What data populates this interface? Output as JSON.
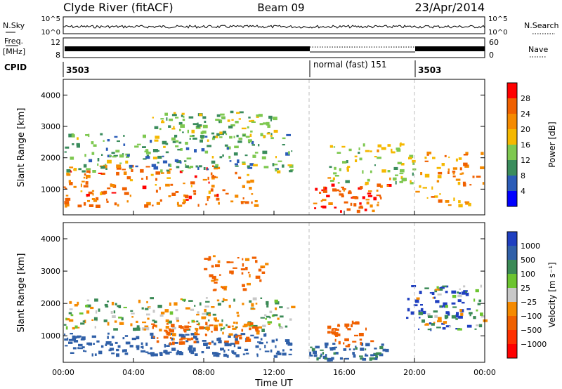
{
  "header": {
    "station": "Clyde River (fitACF)",
    "beam": "Beam 09",
    "date": "23/Apr/2014"
  },
  "status": {
    "nsky_label": "N.Sky",
    "nsky_ticks": [
      "10^5",
      "10^0"
    ],
    "nsearch_label": "N.Search",
    "freq_label_1": "Freq.",
    "freq_label_2": "[MHz]",
    "freq_ticks": [
      "12",
      "8"
    ],
    "nave_label": "Nave",
    "nave_ticks": [
      "60",
      "0"
    ],
    "cpid_label": "CPID",
    "cpid_segments": [
      "3503",
      "normal (fast) 151",
      "3503"
    ]
  },
  "colors": {
    "power_scale": [
      "#0000ff",
      "#2b5cb8",
      "#3a8c5c",
      "#7ec850",
      "#f5b800",
      "#f58a00",
      "#f06000",
      "#ff0000"
    ],
    "velocity_scale": [
      "#1f3fc0",
      "#3060a8",
      "#3b8a56",
      "#6cc430",
      "#c8c8c8",
      "#f58a00",
      "#f06000",
      "#ff3000",
      "#ff0000"
    ],
    "ground_scatter": "#b8b8b8"
  },
  "chart_data": [
    {
      "type": "heatmap",
      "title": "",
      "xlabel": "",
      "ylabel": "Slant Range [km]",
      "xlim": [
        0,
        24
      ],
      "ylim": [
        180,
        4500
      ],
      "x_ticks": [],
      "y_ticks": [
        "1000",
        "2000",
        "3000",
        "4000"
      ],
      "colorbar_label": "Power [dB]",
      "colorbar_ticks": [
        "4",
        "8",
        "12",
        "16",
        "20",
        "24",
        "28"
      ],
      "colorbar_range": [
        0,
        32
      ],
      "mode_change_times": [
        14,
        20
      ],
      "bands": [
        {
          "start": 0.0,
          "end": 11.0,
          "range_low": 500,
          "range_high": 1800,
          "power": 24
        },
        {
          "start": 0.0,
          "end": 13.0,
          "range_low": 1600,
          "range_high": 2800,
          "power": 12
        },
        {
          "start": 5.0,
          "end": 12.0,
          "range_low": 2600,
          "range_high": 3500,
          "power": 14
        },
        {
          "start": 14.0,
          "end": 18.5,
          "range_low": 300,
          "range_high": 1200,
          "power": 26
        },
        {
          "start": 15.0,
          "end": 20.0,
          "range_low": 1200,
          "range_high": 2500,
          "power": 16
        },
        {
          "start": 20.0,
          "end": 24.0,
          "range_low": 500,
          "range_high": 2200,
          "power": 22
        }
      ]
    },
    {
      "type": "heatmap",
      "title": "",
      "xlabel": "Time UT",
      "ylabel": "Slant Range [km]",
      "xlim": [
        0,
        24
      ],
      "ylim": [
        180,
        4500
      ],
      "x_ticks": [
        "00:00",
        "04:00",
        "08:00",
        "12:00",
        "16:00",
        "20:00",
        "00:00"
      ],
      "y_ticks": [
        "1000",
        "2000",
        "3000",
        "4000"
      ],
      "colorbar_label": "Velocity [m s⁻¹]",
      "colorbar_ticks": [
        "1000",
        "500",
        "100",
        "25",
        "−25",
        "−100",
        "−500",
        "−1000"
      ],
      "mode_change_times": [
        14,
        20
      ],
      "bands": [
        {
          "start": 0.0,
          "end": 13.0,
          "range_low": 400,
          "range_high": 1100,
          "velocity": 200
        },
        {
          "start": 0.0,
          "end": 13.0,
          "range_low": 1200,
          "range_high": 2200,
          "velocity": 0
        },
        {
          "start": 5.0,
          "end": 11.0,
          "range_low": 800,
          "range_high": 1500,
          "velocity": -150
        },
        {
          "start": 8.0,
          "end": 11.5,
          "range_low": 2400,
          "range_high": 3500,
          "velocity": -150
        },
        {
          "start": 14.0,
          "end": 18.5,
          "range_low": 300,
          "range_high": 800,
          "velocity": 120
        },
        {
          "start": 15.0,
          "end": 17.5,
          "range_low": 700,
          "range_high": 1500,
          "velocity": -200
        },
        {
          "start": 19.5,
          "end": 23.0,
          "range_low": 1200,
          "range_high": 2600,
          "velocity": 700
        },
        {
          "start": 20.0,
          "end": 24.0,
          "range_low": 1200,
          "range_high": 2600,
          "velocity": 0
        }
      ]
    }
  ]
}
